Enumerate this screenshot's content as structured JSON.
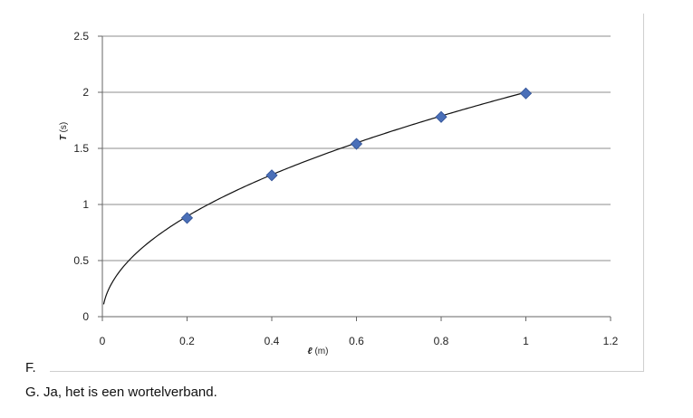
{
  "doc": {
    "item_f": "F.",
    "item_g": "G. Ja, het is een wortelverband."
  },
  "chart_data": {
    "type": "scatter",
    "title": "",
    "xlabel": {
      "symbol": "ℓ",
      "unit": " (m)"
    },
    "ylabel": {
      "symbol": "T",
      "unit": " (s)"
    },
    "xlim": [
      0,
      1.2
    ],
    "ylim": [
      0,
      2.5
    ],
    "x_ticks": [
      "0",
      "0.2",
      "0.4",
      "0.6",
      "0.8",
      "1",
      "1.2"
    ],
    "y_ticks": [
      "0",
      "0.5",
      "1",
      "1.5",
      "2",
      "2.5"
    ],
    "grid": "horizontal",
    "series": [
      {
        "x": [
          0.2,
          0.4,
          0.6,
          0.8,
          1.0
        ],
        "y": [
          0.88,
          1.26,
          1.54,
          1.78,
          1.99
        ],
        "marker": "diamond",
        "color": "#4a6fb8"
      }
    ],
    "trendline": {
      "type": "power",
      "coefficient": 2.0,
      "exponent": 0.5,
      "x_start": 0.003,
      "color": "#111111"
    }
  }
}
